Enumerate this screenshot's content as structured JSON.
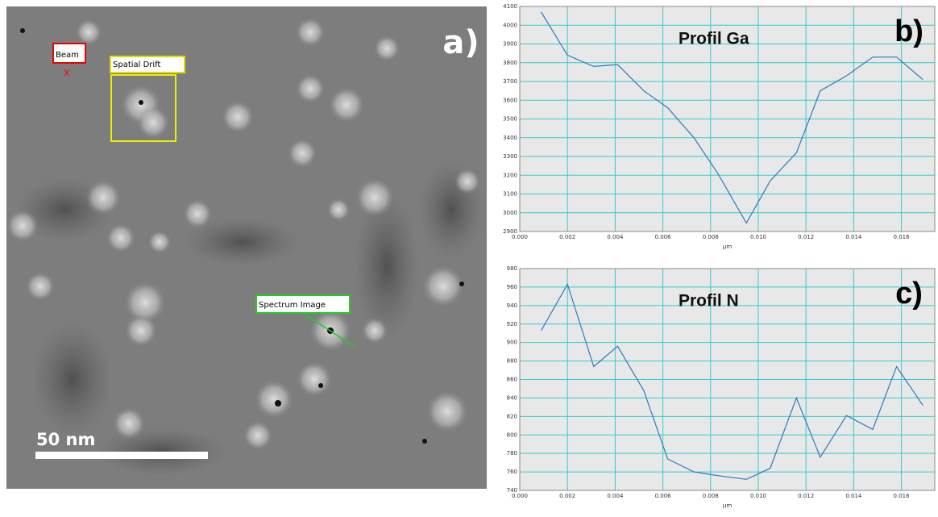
{
  "image": {
    "label": "a)",
    "scale_bar": "50 nm",
    "annotations": [
      {
        "label": "Beam"
      },
      {
        "label": "Spatial Drift"
      },
      {
        "label": "Spectrum Image"
      }
    ]
  },
  "chart_data": [
    {
      "type": "line",
      "title": "Profil Ga",
      "label": "b)",
      "x_label": "µm",
      "x": [
        0.0009,
        0.002,
        0.0031,
        0.0041,
        0.0052,
        0.0062,
        0.0073,
        0.0083,
        0.0095,
        0.0105,
        0.0116,
        0.0126,
        0.0137,
        0.0148,
        0.0158,
        0.0169
      ],
      "values": [
        4070,
        3840,
        3780,
        3790,
        3650,
        3560,
        3400,
        3210,
        2945,
        3170,
        3320,
        3650,
        3730,
        3830,
        3830,
        3710
      ],
      "color": "#2b7bbd",
      "xlim": [
        0,
        0.0174
      ],
      "ylim": [
        2900,
        4100
      ],
      "xticks": [
        {
          "value": 0,
          "label": "0.000"
        },
        {
          "value": 0.002,
          "label": "0.002"
        },
        {
          "value": 0.004,
          "label": "0.004"
        },
        {
          "value": 0.006,
          "label": "0.006"
        },
        {
          "value": 0.008,
          "label": "0.008"
        },
        {
          "value": 0.01,
          "label": "0.010"
        },
        {
          "value": 0.012,
          "label": "0.012"
        },
        {
          "value": 0.014,
          "label": "0.014"
        },
        {
          "value": 0.016,
          "label": "0.016"
        }
      ],
      "yticks": [
        2900,
        3000,
        3100,
        3200,
        3300,
        3400,
        3500,
        3600,
        3700,
        3800,
        3900,
        4000,
        4100
      ],
      "grid": true
    },
    {
      "type": "line",
      "title": "Profil N",
      "label": "c)",
      "x_label": "µm",
      "x": [
        0.0009,
        0.002,
        0.0031,
        0.0041,
        0.0052,
        0.0062,
        0.0073,
        0.0083,
        0.0095,
        0.0105,
        0.0116,
        0.0126,
        0.0137,
        0.0148,
        0.0158,
        0.0169
      ],
      "values": [
        913,
        963,
        874,
        896,
        848,
        774,
        760,
        756,
        752,
        764,
        840,
        776,
        821,
        806,
        874,
        832
      ],
      "color": "#2b7bbd",
      "xlim": [
        0,
        0.0174
      ],
      "ylim": [
        740,
        980
      ],
      "xticks": [
        {
          "value": 0,
          "label": "0.000"
        },
        {
          "value": 0.002,
          "label": "0.002"
        },
        {
          "value": 0.004,
          "label": "0.004"
        },
        {
          "value": 0.006,
          "label": "0.006"
        },
        {
          "value": 0.008,
          "label": "0.008"
        },
        {
          "value": 0.01,
          "label": "0.010"
        },
        {
          "value": 0.012,
          "label": "0.012"
        },
        {
          "value": 0.014,
          "label": "0.014"
        },
        {
          "value": 0.016,
          "label": "0.016"
        }
      ],
      "yticks": [
        740,
        760,
        780,
        800,
        820,
        840,
        860,
        880,
        900,
        920,
        940,
        960,
        980
      ],
      "grid": true
    }
  ]
}
